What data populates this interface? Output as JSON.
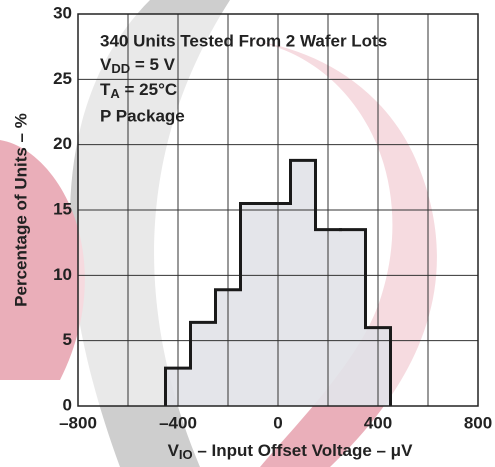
{
  "chart_data": {
    "type": "histogram",
    "annotations": [
      [
        "340 Units Tested From 2 Wafer Lots"
      ],
      [
        "V",
        "DD",
        " = 5 V"
      ],
      [
        "T",
        "A",
        " = 25°C"
      ],
      [
        "P Package"
      ]
    ],
    "xlabel": [
      "V",
      "IO",
      " – Input Offset Voltage – μV"
    ],
    "ylabel": "Percentage of Units – %",
    "bins": [
      -450,
      -350,
      -250,
      -150,
      -50,
      50,
      150,
      250,
      350,
      450
    ],
    "values": [
      2.9,
      6.4,
      8.9,
      15.5,
      15.5,
      18.8,
      13.5,
      13.5,
      6.0
    ],
    "color": "#dfe1e6",
    "edgecolor": "#1a1a1a",
    "xlim": [
      -800,
      800
    ],
    "xticks": [
      {
        "value": -800,
        "label": "–800"
      },
      {
        "value": -400,
        "label": "–400"
      },
      0,
      400,
      800
    ],
    "xminor": [
      -600,
      -200,
      200,
      600
    ],
    "ylim": [
      0,
      30
    ],
    "yticks": [
      0,
      5,
      10,
      15,
      20,
      25,
      30
    ],
    "grid": true
  }
}
